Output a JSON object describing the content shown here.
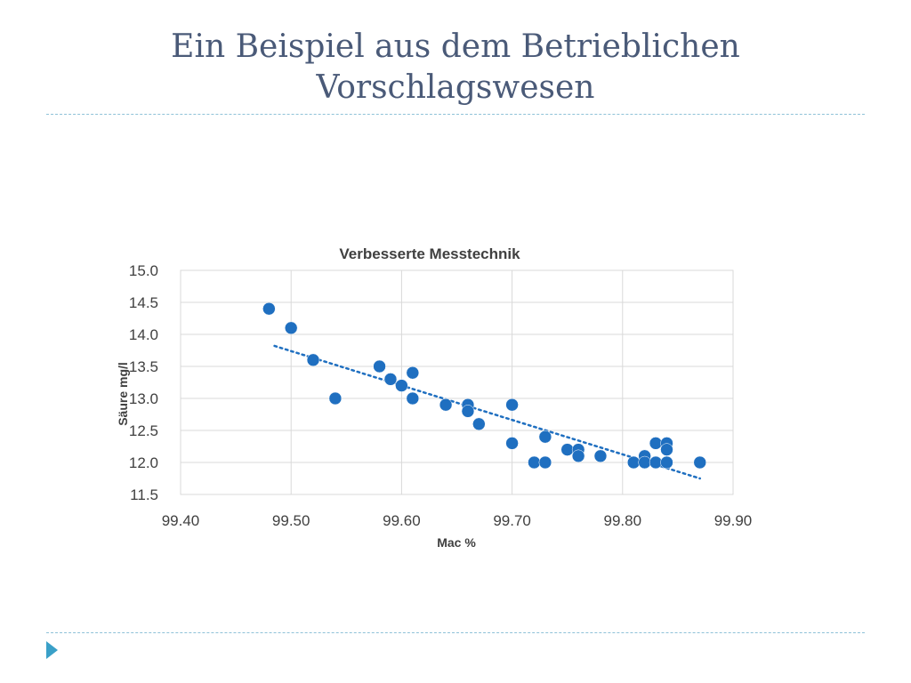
{
  "slide": {
    "title_line1": "Ein Beispiel aus dem Betrieblichen",
    "title_line2": "Vorschlagswesen",
    "accent_color": "#4a5a78",
    "divider_color": "#8fc2d8",
    "bullet_icon": "triangle-right-icon",
    "bullet_color": "#3aa0c8"
  },
  "chart_data": {
    "type": "scatter",
    "title": "Verbesserte Messtechnik",
    "xlabel": "Mac %",
    "ylabel": "Säure mg/l",
    "xlim": [
      99.4,
      99.9
    ],
    "ylim": [
      11.5,
      15.0
    ],
    "x_ticks": [
      "99.40",
      "99.50",
      "99.60",
      "99.70",
      "99.80",
      "99.90"
    ],
    "y_ticks": [
      "15.0",
      "14.5",
      "14.0",
      "13.5",
      "13.0",
      "12.5",
      "12.0",
      "11.5"
    ],
    "grid": "vertical and horizontal",
    "marker_color": "#1f6fc0",
    "trendline": {
      "type": "linear",
      "style": "dotted",
      "color": "#1f6fc0",
      "x_from": 99.485,
      "x_to": 99.87,
      "y_from": 13.82,
      "y_to": 11.75
    },
    "points": [
      {
        "x": 99.48,
        "y": 14.4
      },
      {
        "x": 99.5,
        "y": 14.1
      },
      {
        "x": 99.52,
        "y": 13.6
      },
      {
        "x": 99.54,
        "y": 13.0
      },
      {
        "x": 99.58,
        "y": 13.5
      },
      {
        "x": 99.59,
        "y": 13.3
      },
      {
        "x": 99.6,
        "y": 13.2
      },
      {
        "x": 99.61,
        "y": 13.4
      },
      {
        "x": 99.61,
        "y": 13.0
      },
      {
        "x": 99.64,
        "y": 12.9
      },
      {
        "x": 99.66,
        "y": 12.9
      },
      {
        "x": 99.66,
        "y": 12.8
      },
      {
        "x": 99.67,
        "y": 12.6
      },
      {
        "x": 99.7,
        "y": 12.9
      },
      {
        "x": 99.7,
        "y": 12.3
      },
      {
        "x": 99.72,
        "y": 12.0
      },
      {
        "x": 99.73,
        "y": 12.4
      },
      {
        "x": 99.73,
        "y": 12.0
      },
      {
        "x": 99.75,
        "y": 12.2
      },
      {
        "x": 99.76,
        "y": 12.2
      },
      {
        "x": 99.76,
        "y": 12.1
      },
      {
        "x": 99.78,
        "y": 12.1
      },
      {
        "x": 99.81,
        "y": 12.0
      },
      {
        "x": 99.82,
        "y": 12.1
      },
      {
        "x": 99.82,
        "y": 12.0
      },
      {
        "x": 99.83,
        "y": 12.3
      },
      {
        "x": 99.83,
        "y": 12.0
      },
      {
        "x": 99.84,
        "y": 12.3
      },
      {
        "x": 99.84,
        "y": 12.2
      },
      {
        "x": 99.84,
        "y": 12.0
      },
      {
        "x": 99.87,
        "y": 12.0
      }
    ]
  }
}
